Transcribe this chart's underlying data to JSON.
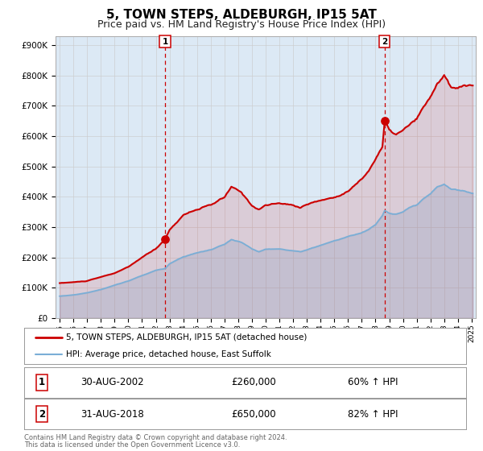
{
  "title": "5, TOWN STEPS, ALDEBURGH, IP15 5AT",
  "subtitle": "Price paid vs. HM Land Registry's House Price Index (HPI)",
  "plot_bg_color": "#dce9f5",
  "red_line_color": "#cc0000",
  "blue_line_color": "#7aaed6",
  "vline_color": "#cc0000",
  "marker1_price": 260000,
  "marker2_price": 650000,
  "vline1_x": 2002.67,
  "vline2_x": 2018.67,
  "yticks": [
    0,
    100000,
    200000,
    300000,
    400000,
    500000,
    600000,
    700000,
    800000,
    900000
  ],
  "ytick_labels": [
    "£0",
    "£100K",
    "£200K",
    "£300K",
    "£400K",
    "£500K",
    "£600K",
    "£700K",
    "£800K",
    "£900K"
  ],
  "xmin": 1994.7,
  "xmax": 2025.3,
  "ymin": 0,
  "ymax": 930000,
  "legend1_label": "5, TOWN STEPS, ALDEBURGH, IP15 5AT (detached house)",
  "legend2_label": "HPI: Average price, detached house, East Suffolk",
  "table_row1": [
    "1",
    "30-AUG-2002",
    "£260,000",
    "60% ↑ HPI"
  ],
  "table_row2": [
    "2",
    "31-AUG-2018",
    "£650,000",
    "82% ↑ HPI"
  ],
  "footnote1": "Contains HM Land Registry data © Crown copyright and database right 2024.",
  "footnote2": "This data is licensed under the Open Government Licence v3.0.",
  "grid_color": "#cccccc",
  "title_fontsize": 11,
  "subtitle_fontsize": 9
}
